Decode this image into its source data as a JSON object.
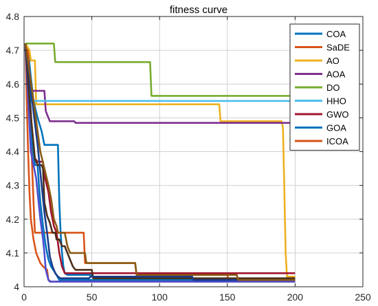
{
  "chart_data": {
    "type": "line",
    "title": "fitness curve",
    "xlabel": "",
    "ylabel": "",
    "xlim": [
      0,
      250
    ],
    "ylim": [
      4,
      4.8
    ],
    "xticks": [
      0,
      50,
      100,
      150,
      200,
      250
    ],
    "yticks": [
      4,
      4.1,
      4.2,
      4.3,
      4.4,
      4.5,
      4.6,
      4.7,
      4.8
    ],
    "xtick_labels": [
      "0",
      "50",
      "100",
      "150",
      "200",
      "250"
    ],
    "ytick_labels": [
      "4",
      "4.1",
      "4.2",
      "4.3",
      "4.4",
      "4.5",
      "4.6",
      "4.7",
      "4.8"
    ],
    "grid": true,
    "legend_position": "top-right",
    "series": [
      {
        "name": "COA",
        "color": "#0072BD",
        "points": [
          [
            1,
            4.72
          ],
          [
            3,
            4.7
          ],
          [
            5,
            4.62
          ],
          [
            7,
            4.55
          ],
          [
            10,
            4.5
          ],
          [
            13,
            4.46
          ],
          [
            15,
            4.42
          ],
          [
            25,
            4.42
          ],
          [
            26,
            4.25
          ],
          [
            27,
            4.16
          ],
          [
            28,
            4.1
          ],
          [
            29,
            4.06
          ],
          [
            30,
            4.04
          ],
          [
            32,
            4.035
          ],
          [
            50,
            4.035
          ],
          [
            51,
            4.03
          ],
          [
            124,
            4.03
          ],
          [
            125,
            4.015
          ],
          [
            200,
            4.015
          ]
        ]
      },
      {
        "name": "SaDE",
        "color": "#D95319",
        "points": [
          [
            1,
            4.71
          ],
          [
            3,
            4.7
          ],
          [
            4,
            4.62
          ],
          [
            5,
            4.5
          ],
          [
            6,
            4.35
          ],
          [
            7,
            4.25
          ],
          [
            8,
            4.16
          ],
          [
            10,
            4.16
          ],
          [
            12,
            4.16
          ],
          [
            44,
            4.16
          ],
          [
            45,
            4.07
          ],
          [
            82,
            4.07
          ],
          [
            83,
            4.035
          ],
          [
            150,
            4.035
          ],
          [
            151,
            4.015
          ],
          [
            200,
            4.015
          ]
        ]
      },
      {
        "name": "AO",
        "color": "#EDB120",
        "points": [
          [
            1,
            4.72
          ],
          [
            4,
            4.7
          ],
          [
            5,
            4.67
          ],
          [
            8,
            4.67
          ],
          [
            9,
            4.54
          ],
          [
            144,
            4.54
          ],
          [
            145,
            4.49
          ],
          [
            190,
            4.49
          ],
          [
            191,
            4.47
          ],
          [
            192,
            4.3
          ],
          [
            193,
            4.1
          ],
          [
            194,
            4.03
          ],
          [
            200,
            4.03
          ]
        ]
      },
      {
        "name": "AOA",
        "color": "#7E2F8E",
        "points": [
          [
            1,
            4.71
          ],
          [
            3,
            4.62
          ],
          [
            4,
            4.58
          ],
          [
            15,
            4.58
          ],
          [
            16,
            4.52
          ],
          [
            18,
            4.5
          ],
          [
            19,
            4.49
          ],
          [
            37,
            4.49
          ],
          [
            38,
            4.485
          ],
          [
            200,
            4.485
          ]
        ]
      },
      {
        "name": "DO",
        "color": "#77AC30",
        "points": [
          [
            1,
            4.72
          ],
          [
            22,
            4.72
          ],
          [
            23,
            4.665
          ],
          [
            93,
            4.665
          ],
          [
            94,
            4.565
          ],
          [
            200,
            4.565
          ]
        ]
      },
      {
        "name": "HHO",
        "color": "#4DBEEE",
        "points": [
          [
            1,
            4.7
          ],
          [
            3,
            4.6
          ],
          [
            5,
            4.55
          ],
          [
            200,
            4.55
          ]
        ]
      },
      {
        "name": "GWO",
        "color": "#A2142F",
        "points": [
          [
            1,
            4.72
          ],
          [
            3,
            4.62
          ],
          [
            5,
            4.52
          ],
          [
            6,
            4.42
          ],
          [
            8,
            4.38
          ],
          [
            10,
            4.37
          ],
          [
            14,
            4.37
          ],
          [
            15,
            4.33
          ],
          [
            18,
            4.28
          ],
          [
            20,
            4.22
          ],
          [
            22,
            4.18
          ],
          [
            24,
            4.16
          ],
          [
            26,
            4.1
          ],
          [
            28,
            4.06
          ],
          [
            30,
            4.04
          ],
          [
            200,
            4.04
          ]
        ]
      },
      {
        "name": "GOA",
        "color": "#0072BD",
        "points": [
          [
            1,
            4.72
          ],
          [
            4,
            4.6
          ],
          [
            6,
            4.42
          ],
          [
            8,
            4.36
          ],
          [
            10,
            4.36
          ],
          [
            11,
            4.3
          ],
          [
            12,
            4.25
          ],
          [
            14,
            4.18
          ],
          [
            16,
            4.12
          ],
          [
            18,
            4.08
          ],
          [
            20,
            4.06
          ],
          [
            24,
            4.035
          ],
          [
            26,
            4.02
          ],
          [
            200,
            4.02
          ]
        ]
      },
      {
        "name": "ICOA",
        "color": "#D95319",
        "points": [
          [
            1,
            4.72
          ],
          [
            2,
            4.55
          ],
          [
            3,
            4.4
          ],
          [
            4,
            4.28
          ],
          [
            5,
            4.2
          ],
          [
            7,
            4.14
          ],
          [
            9,
            4.1
          ],
          [
            12,
            4.07
          ],
          [
            14,
            4.06
          ],
          [
            17,
            4.05
          ],
          [
            18,
            4.02
          ],
          [
            20,
            4.015
          ],
          [
            200,
            4.015
          ]
        ]
      },
      {
        "color": "#4D4DD1",
        "points": [
          [
            1,
            4.71
          ],
          [
            5,
            4.4
          ],
          [
            9,
            4.32
          ],
          [
            12,
            4.2
          ],
          [
            14,
            4.14
          ],
          [
            15,
            4.1
          ],
          [
            16,
            4.05
          ],
          [
            18,
            4.02
          ],
          [
            19,
            4.015
          ],
          [
            200,
            4.015
          ]
        ]
      },
      {
        "color": "#4A2E1A",
        "points": [
          [
            1,
            4.72
          ],
          [
            4,
            4.55
          ],
          [
            8,
            4.38
          ],
          [
            10,
            4.36
          ],
          [
            13,
            4.36
          ],
          [
            14,
            4.35
          ],
          [
            15,
            4.25
          ],
          [
            17,
            4.21
          ],
          [
            19,
            4.19
          ],
          [
            21,
            4.16
          ],
          [
            23,
            4.16
          ],
          [
            24,
            4.14
          ],
          [
            26,
            4.14
          ],
          [
            28,
            4.12
          ],
          [
            30,
            4.12
          ],
          [
            32,
            4.1
          ],
          [
            34,
            4.08
          ],
          [
            36,
            4.06
          ],
          [
            38,
            4.05
          ],
          [
            50,
            4.05
          ],
          [
            51,
            4.025
          ],
          [
            200,
            4.025
          ]
        ]
      },
      {
        "color": "#1A3C8C",
        "points": [
          [
            1,
            4.72
          ],
          [
            6,
            4.55
          ],
          [
            10,
            4.42
          ],
          [
            13,
            4.3
          ],
          [
            15,
            4.22
          ],
          [
            17,
            4.16
          ],
          [
            19,
            4.09
          ],
          [
            21,
            4.06
          ],
          [
            23,
            4.04
          ],
          [
            25,
            4.03
          ],
          [
            27,
            4.025
          ],
          [
            48,
            4.025
          ],
          [
            49,
            4.03
          ],
          [
            124,
            4.03
          ],
          [
            125,
            4.02
          ],
          [
            200,
            4.02
          ]
        ]
      },
      {
        "color": "#8B5A14",
        "points": [
          [
            1,
            4.72
          ],
          [
            7,
            4.55
          ],
          [
            12,
            4.4
          ],
          [
            15,
            4.35
          ],
          [
            18,
            4.3
          ],
          [
            20,
            4.26
          ],
          [
            22,
            4.2
          ],
          [
            24,
            4.18
          ],
          [
            25,
            4.16
          ],
          [
            30,
            4.16
          ],
          [
            32,
            4.12
          ],
          [
            34,
            4.1
          ],
          [
            36,
            4.1
          ],
          [
            40,
            4.1
          ],
          [
            45,
            4.1
          ],
          [
            46,
            4.07
          ],
          [
            82,
            4.07
          ],
          [
            83,
            4.035
          ],
          [
            157,
            4.035
          ],
          [
            158,
            4.02
          ],
          [
            200,
            4.02
          ]
        ]
      }
    ]
  }
}
